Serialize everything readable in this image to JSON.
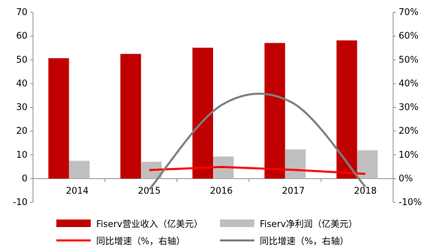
{
  "chart_data": {
    "type": "bar",
    "categories": [
      "2014",
      "2015",
      "2016",
      "2017",
      "2018"
    ],
    "series": [
      {
        "name": "Fiserv营业收入（亿美元）",
        "kind": "bar",
        "axis": "left",
        "color": "#c00000",
        "values": [
          50.7,
          52.5,
          55.1,
          57.1,
          58.2
        ]
      },
      {
        "name": "Fiserv净利润（亿美元）",
        "kind": "bar",
        "axis": "left",
        "color": "#bfbfbf",
        "values": [
          7.5,
          7.1,
          9.3,
          12.3,
          11.9
        ]
      },
      {
        "name": "同比增速（%，右轴）",
        "kind": "line",
        "axis": "right",
        "color": "#ff0000",
        "values": [
          null,
          3.6,
          4.9,
          3.7,
          2.0
        ]
      },
      {
        "name": "同比增速（%，右轴）",
        "kind": "line",
        "axis": "right",
        "color": "#7f7f7f",
        "smooth": true,
        "values": [
          null,
          -4.6,
          30.9,
          31.7,
          -3.5
        ]
      }
    ],
    "ylim_left": [
      -10,
      70
    ],
    "ylim_right": [
      -10,
      70
    ],
    "yticks_left": [
      "-10",
      "0",
      "10",
      "20",
      "30",
      "40",
      "50",
      "60",
      "70"
    ],
    "yticks_right": [
      "-10%",
      "0%",
      "10%",
      "20%",
      "30%",
      "40%",
      "50%",
      "60%",
      "70%"
    ],
    "grid": false,
    "legend_position": "bottom"
  },
  "legend": [
    {
      "label": "Fiserv营业收入（亿美元）",
      "color": "#c00000",
      "kind": "bar"
    },
    {
      "label": "Fiserv净利润（亿美元）",
      "color": "#bfbfbf",
      "kind": "bar"
    },
    {
      "label": "同比增速（%，右轴）",
      "color": "#ff0000",
      "kind": "line"
    },
    {
      "label": "同比增速（%，右轴）",
      "color": "#7f7f7f",
      "kind": "line"
    }
  ]
}
